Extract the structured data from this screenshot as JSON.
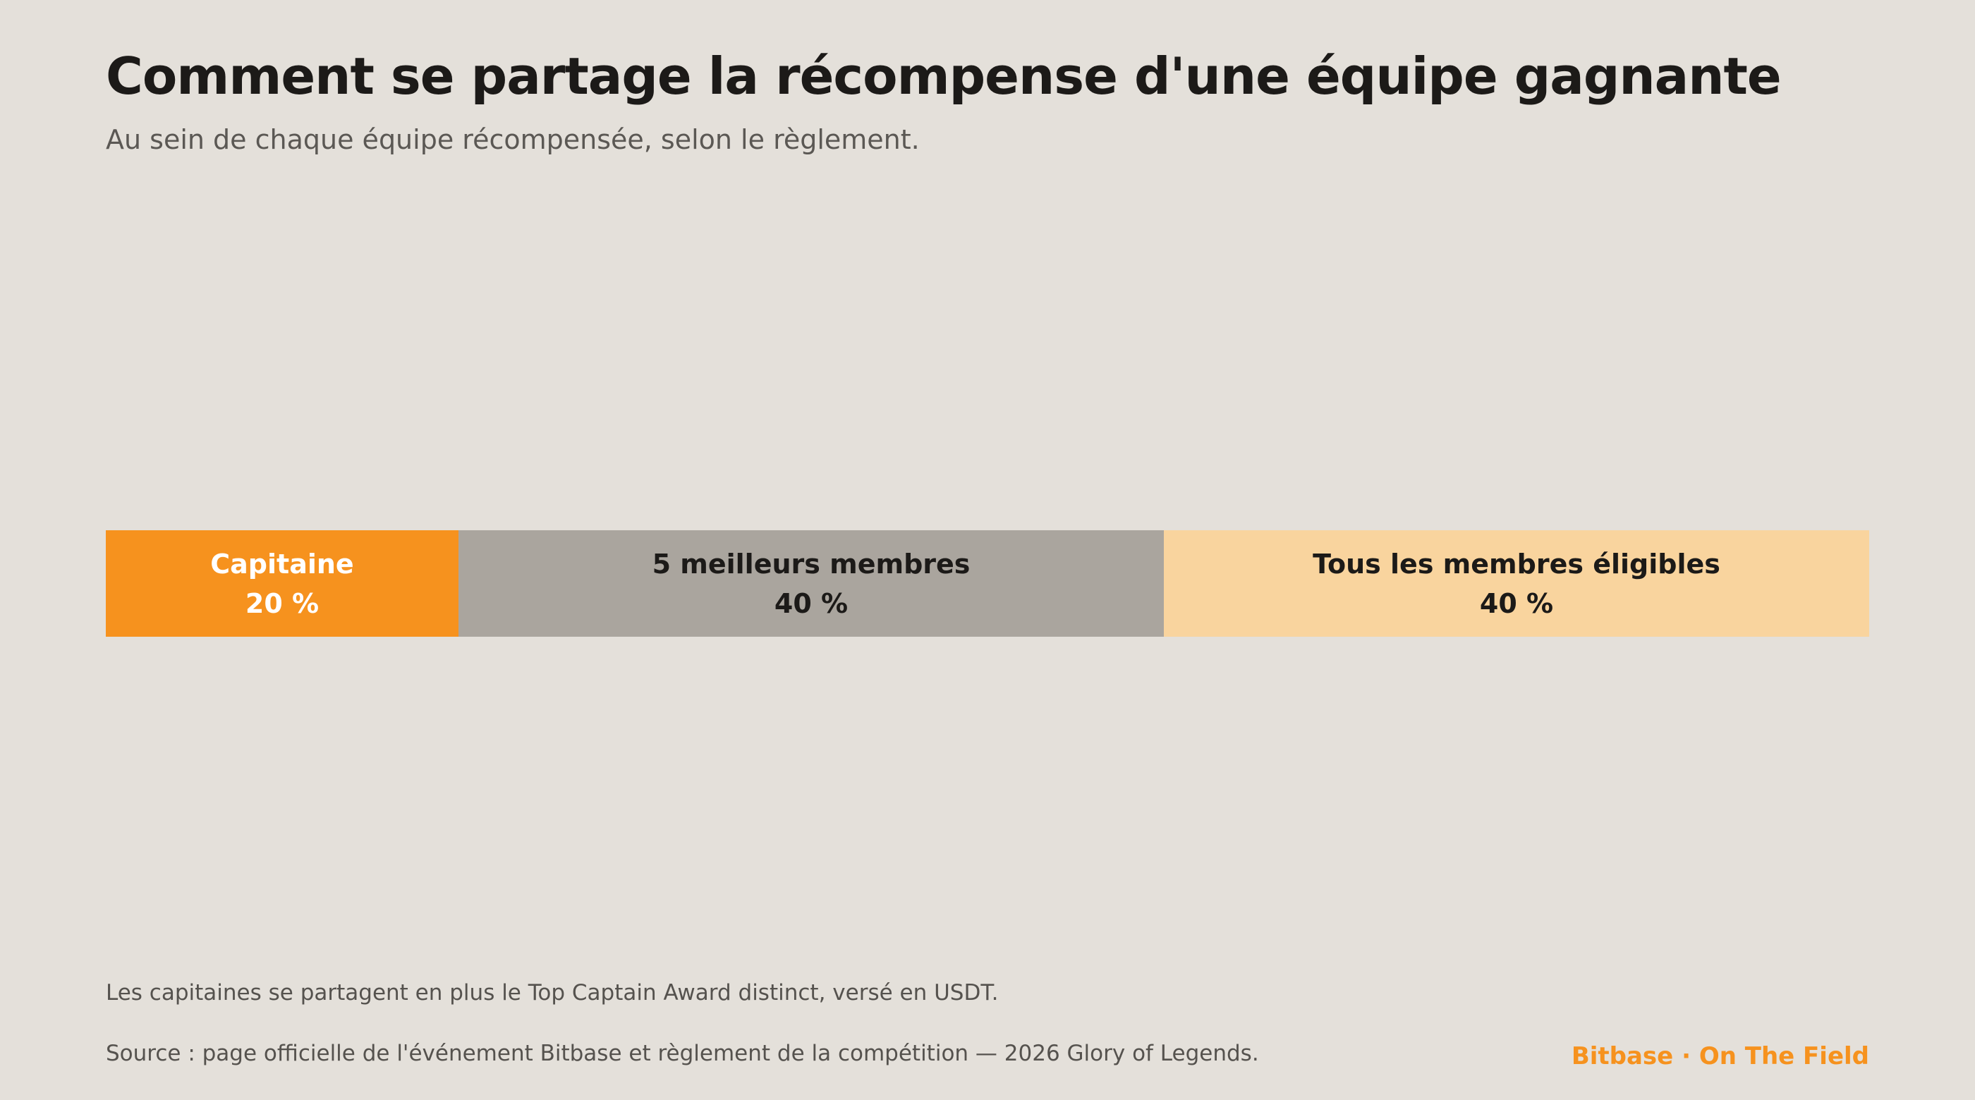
{
  "header": {
    "title": "Comment se partage la récompense d'une équipe gagnante",
    "subtitle": "Au sein de chaque équipe récompensée, selon le règlement."
  },
  "chart_data": {
    "type": "bar",
    "orientation": "horizontal-stacked",
    "unit": "%",
    "segments": [
      {
        "label": "Capitaine",
        "value": 20,
        "value_label": "20 %",
        "color": "#f6921e",
        "text_color": "#ffffff"
      },
      {
        "label": "5 meilleurs membres",
        "value": 40,
        "value_label": "40 %",
        "color": "#aaa59e",
        "text_color": "#1c1a18"
      },
      {
        "label": "Tous les membres éligibles",
        "value": 40,
        "value_label": "40 %",
        "color": "#f9d49e",
        "text_color": "#1c1a18"
      }
    ]
  },
  "footer": {
    "note": "Les capitaines se partagent en plus le Top Captain Award distinct, versé en USDT.",
    "source": "Source : page officielle de l'événement Bitbase et règlement de la compétition — 2026 Glory of Legends.",
    "brand": "Bitbase · On The Field"
  },
  "colors": {
    "background": "#e4e0da",
    "accent": "#f6921e",
    "text": "#1c1a18",
    "muted_text": "#5b5854"
  }
}
